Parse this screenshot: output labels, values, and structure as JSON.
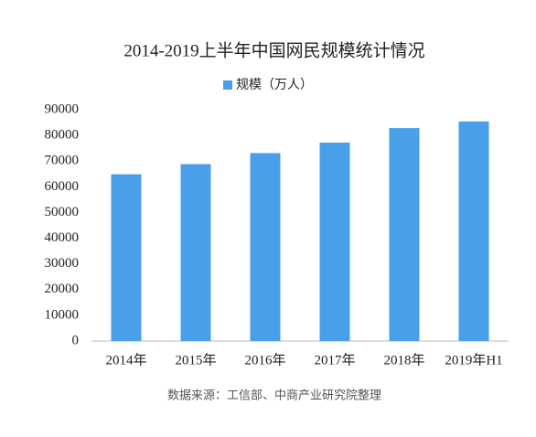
{
  "chart_data": {
    "type": "bar",
    "title": "2014-2019上半年中国网民规模统计情况",
    "categories": [
      "2014年",
      "2015年",
      "2016年",
      "2017年",
      "2018年",
      "2019年H1"
    ],
    "series": [
      {
        "name": "规模（万人）",
        "color": "#4a9fea",
        "values": [
          64875,
          68826,
          73125,
          77198,
          82851,
          85449
        ]
      }
    ],
    "ylim": [
      0,
      90000
    ],
    "yticks": [
      0,
      10000,
      20000,
      30000,
      40000,
      50000,
      60000,
      70000,
      80000,
      90000
    ],
    "grid": false,
    "legend": "top",
    "source": "数据来源：工信部、中商产业研究院整理"
  }
}
